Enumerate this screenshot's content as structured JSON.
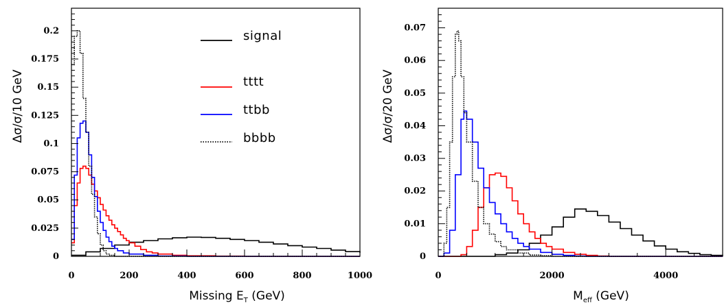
{
  "chart_data": [
    {
      "type": "line",
      "step": true,
      "xlabel": "Missing E_T (GeV)",
      "xlabel_main": "Missing E",
      "xlabel_sub": "T",
      "xlabel_unit": " (GeV)",
      "ylabel": "Δσ/σ/10 GeV",
      "xlim": [
        0,
        1000
      ],
      "ylim": [
        0,
        0.22
      ],
      "x_ticks": [
        0,
        200,
        400,
        600,
        800,
        1000
      ],
      "x_tick_labels": [
        "0",
        "200",
        "400",
        "600",
        "800",
        "1000"
      ],
      "y_ticks": [
        0,
        0.025,
        0.05,
        0.075,
        0.1,
        0.125,
        0.15,
        0.175,
        0.2
      ],
      "y_tick_labels": [
        "0",
        "0.025",
        "0.05",
        "0.075",
        "0.1",
        "0.125",
        "0.15",
        "0.175",
        "0.2"
      ],
      "legend": "top-right",
      "series": [
        {
          "name": "signal",
          "color": "#000000",
          "dash": "solid",
          "points": [
            [
              0,
              0.001
            ],
            [
              50,
              0.004
            ],
            [
              100,
              0.007
            ],
            [
              150,
              0.01
            ],
            [
              200,
              0.0125
            ],
            [
              250,
              0.014
            ],
            [
              300,
              0.0155
            ],
            [
              350,
              0.0165
            ],
            [
              400,
              0.017
            ],
            [
              450,
              0.0168
            ],
            [
              500,
              0.016
            ],
            [
              550,
              0.015
            ],
            [
              600,
              0.014
            ],
            [
              650,
              0.0125
            ],
            [
              700,
              0.011
            ],
            [
              750,
              0.0095
            ],
            [
              800,
              0.0082
            ],
            [
              850,
              0.007
            ],
            [
              900,
              0.0055
            ],
            [
              950,
              0.0042
            ],
            [
              1000,
              0.0032
            ]
          ]
        },
        {
          "name": "tttt",
          "color": "#ff0000",
          "dash": "solid",
          "points": [
            [
              0,
              0.012
            ],
            [
              10,
              0.045
            ],
            [
              20,
              0.065
            ],
            [
              30,
              0.078
            ],
            [
              40,
              0.08
            ],
            [
              50,
              0.078
            ],
            [
              60,
              0.072
            ],
            [
              70,
              0.064
            ],
            [
              80,
              0.058
            ],
            [
              90,
              0.052
            ],
            [
              100,
              0.046
            ],
            [
              110,
              0.041
            ],
            [
              120,
              0.036
            ],
            [
              130,
              0.032
            ],
            [
              140,
              0.028
            ],
            [
              150,
              0.025
            ],
            [
              160,
              0.022
            ],
            [
              170,
              0.019
            ],
            [
              180,
              0.016
            ],
            [
              190,
              0.014
            ],
            [
              200,
              0.012
            ],
            [
              220,
              0.009
            ],
            [
              240,
              0.006
            ],
            [
              260,
              0.004
            ],
            [
              280,
              0.003
            ],
            [
              300,
              0.002
            ],
            [
              350,
              0.001
            ],
            [
              400,
              0.0005
            ],
            [
              500,
              0.0002
            ],
            [
              600,
              0
            ],
            [
              1000,
              0
            ]
          ]
        },
        {
          "name": "ttbb",
          "color": "#0000ff",
          "dash": "solid",
          "points": [
            [
              0,
              0.015
            ],
            [
              10,
              0.072
            ],
            [
              20,
              0.105
            ],
            [
              30,
              0.118
            ],
            [
              40,
              0.12
            ],
            [
              50,
              0.11
            ],
            [
              60,
              0.09
            ],
            [
              70,
              0.07
            ],
            [
              80,
              0.053
            ],
            [
              90,
              0.04
            ],
            [
              100,
              0.03
            ],
            [
              110,
              0.023
            ],
            [
              120,
              0.017
            ],
            [
              130,
              0.013
            ],
            [
              140,
              0.009
            ],
            [
              150,
              0.007
            ],
            [
              160,
              0.005
            ],
            [
              180,
              0.003
            ],
            [
              200,
              0.002
            ],
            [
              250,
              0.001
            ],
            [
              300,
              0.0003
            ],
            [
              400,
              0
            ],
            [
              1000,
              0
            ]
          ]
        },
        {
          "name": "bbbb",
          "color": "#000000",
          "dash": "dotted",
          "points": [
            [
              0,
              0.17
            ],
            [
              10,
              0.195
            ],
            [
              20,
              0.2
            ],
            [
              30,
              0.18
            ],
            [
              40,
              0.14
            ],
            [
              50,
              0.11
            ],
            [
              60,
              0.08
            ],
            [
              70,
              0.055
            ],
            [
              80,
              0.035
            ],
            [
              90,
              0.02
            ],
            [
              100,
              0.01
            ],
            [
              110,
              0.005
            ],
            [
              120,
              0.002
            ],
            [
              130,
              0.001
            ],
            [
              150,
              0
            ],
            [
              1000,
              0
            ]
          ]
        }
      ]
    },
    {
      "type": "line",
      "step": true,
      "xlabel": "M_eff (GeV)",
      "xlabel_main": "M",
      "xlabel_sub": "eff",
      "xlabel_unit": " (GeV)",
      "ylabel": "Δσ/σ/20 GeV",
      "xlim": [
        0,
        5000
      ],
      "ylim": [
        0,
        0.076
      ],
      "x_ticks": [
        0,
        2000,
        4000
      ],
      "x_tick_labels": [
        "0",
        "2000",
        "4000"
      ],
      "y_ticks": [
        0,
        0.01,
        0.02,
        0.03,
        0.04,
        0.05,
        0.06,
        0.07
      ],
      "y_tick_labels": [
        "0",
        "0.01",
        "0.02",
        "0.03",
        "0.04",
        "0.05",
        "0.06",
        "0.07"
      ],
      "series": [
        {
          "name": "signal",
          "color": "#000000",
          "dash": "solid",
          "points": [
            [
              0,
              0
            ],
            [
              800,
              0
            ],
            [
              1000,
              0.0005
            ],
            [
              1200,
              0.001
            ],
            [
              1400,
              0.002
            ],
            [
              1600,
              0.004
            ],
            [
              1800,
              0.0065
            ],
            [
              2000,
              0.009
            ],
            [
              2200,
              0.012
            ],
            [
              2400,
              0.0145
            ],
            [
              2500,
              0.0145
            ],
            [
              2600,
              0.0138
            ],
            [
              2800,
              0.0125
            ],
            [
              3000,
              0.0105
            ],
            [
              3200,
              0.0085
            ],
            [
              3400,
              0.0065
            ],
            [
              3600,
              0.0047
            ],
            [
              3800,
              0.0032
            ],
            [
              4000,
              0.0022
            ],
            [
              4200,
              0.0014
            ],
            [
              4400,
              0.0009
            ],
            [
              4600,
              0.0005
            ],
            [
              4800,
              0.0003
            ],
            [
              5000,
              0.0002
            ]
          ]
        },
        {
          "name": "tttt",
          "color": "#ff0000",
          "dash": "solid",
          "points": [
            [
              0,
              0
            ],
            [
              300,
              0
            ],
            [
              400,
              0.0005
            ],
            [
              500,
              0.003
            ],
            [
              600,
              0.008
            ],
            [
              700,
              0.015
            ],
            [
              800,
              0.021
            ],
            [
              900,
              0.025
            ],
            [
              1000,
              0.0255
            ],
            [
              1100,
              0.0245
            ],
            [
              1200,
              0.021
            ],
            [
              1300,
              0.017
            ],
            [
              1400,
              0.013
            ],
            [
              1500,
              0.01
            ],
            [
              1600,
              0.0075
            ],
            [
              1700,
              0.0055
            ],
            [
              1800,
              0.004
            ],
            [
              1900,
              0.003
            ],
            [
              2000,
              0.0022
            ],
            [
              2200,
              0.0012
            ],
            [
              2400,
              0.0006
            ],
            [
              2600,
              0.0003
            ],
            [
              2800,
              0.0001
            ],
            [
              3000,
              0
            ],
            [
              5000,
              0
            ]
          ]
        },
        {
          "name": "ttbb",
          "color": "#0000ff",
          "dash": "solid",
          "points": [
            [
              0,
              0
            ],
            [
              100,
              0.001
            ],
            [
              200,
              0.008
            ],
            [
              300,
              0.025
            ],
            [
              400,
              0.042
            ],
            [
              450,
              0.0445
            ],
            [
              500,
              0.042
            ],
            [
              600,
              0.035
            ],
            [
              700,
              0.027
            ],
            [
              800,
              0.021
            ],
            [
              900,
              0.0165
            ],
            [
              1000,
              0.013
            ],
            [
              1100,
              0.01
            ],
            [
              1200,
              0.0075
            ],
            [
              1300,
              0.0055
            ],
            [
              1400,
              0.004
            ],
            [
              1500,
              0.003
            ],
            [
              1600,
              0.0022
            ],
            [
              1800,
              0.0012
            ],
            [
              2000,
              0.0006
            ],
            [
              2200,
              0.0003
            ],
            [
              2400,
              0.0001
            ],
            [
              2600,
              0
            ],
            [
              5000,
              0
            ]
          ]
        },
        {
          "name": "bbbb",
          "color": "#000000",
          "dash": "dotted",
          "points": [
            [
              0,
              0
            ],
            [
              100,
              0.004
            ],
            [
              150,
              0.015
            ],
            [
              200,
              0.035
            ],
            [
              250,
              0.055
            ],
            [
              300,
              0.068
            ],
            [
              330,
              0.069
            ],
            [
              360,
              0.066
            ],
            [
              400,
              0.055
            ],
            [
              450,
              0.044
            ],
            [
              500,
              0.035
            ],
            [
              600,
              0.023
            ],
            [
              700,
              0.015
            ],
            [
              800,
              0.01
            ],
            [
              900,
              0.0068
            ],
            [
              1000,
              0.0045
            ],
            [
              1100,
              0.003
            ],
            [
              1200,
              0.002
            ],
            [
              1400,
              0.001
            ],
            [
              1600,
              0.0004
            ],
            [
              1800,
              0.0002
            ],
            [
              2000,
              0
            ],
            [
              5000,
              0
            ]
          ]
        }
      ]
    }
  ]
}
